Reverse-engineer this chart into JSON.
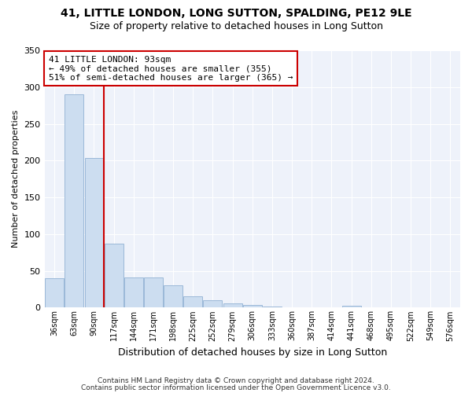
{
  "title": "41, LITTLE LONDON, LONG SUTTON, SPALDING, PE12 9LE",
  "subtitle": "Size of property relative to detached houses in Long Sutton",
  "xlabel": "Distribution of detached houses by size in Long Sutton",
  "ylabel": "Number of detached properties",
  "footer1": "Contains HM Land Registry data © Crown copyright and database right 2024.",
  "footer2": "Contains public sector information licensed under the Open Government Licence v3.0.",
  "annotation_line1": "41 LITTLE LONDON: 93sqm",
  "annotation_line2": "← 49% of detached houses are smaller (355)",
  "annotation_line3": "51% of semi-detached houses are larger (365) →",
  "bar_color": "#ccddf0",
  "bar_edge_color": "#9ab8d8",
  "vline_color": "#cc0000",
  "background_color": "#eef2fa",
  "grid_color": "#ffffff",
  "categories": [
    "36sqm",
    "63sqm",
    "90sqm",
    "117sqm",
    "144sqm",
    "171sqm",
    "198sqm",
    "225sqm",
    "252sqm",
    "279sqm",
    "306sqm",
    "333sqm",
    "360sqm",
    "387sqm",
    "414sqm",
    "441sqm",
    "468sqm",
    "495sqm",
    "522sqm",
    "549sqm",
    "576sqm"
  ],
  "values": [
    40,
    290,
    204,
    87,
    41,
    41,
    30,
    15,
    10,
    6,
    4,
    2,
    0,
    0,
    0,
    3,
    0,
    0,
    0,
    0,
    0
  ],
  "vline_pos": 2.5,
  "ylim": [
    0,
    350
  ],
  "yticks": [
    0,
    50,
    100,
    150,
    200,
    250,
    300,
    350
  ],
  "title_fontsize": 10,
  "subtitle_fontsize": 9,
  "ylabel_fontsize": 8,
  "xlabel_fontsize": 9,
  "tick_fontsize": 7,
  "annotation_fontsize": 8,
  "footer_fontsize": 6.5
}
